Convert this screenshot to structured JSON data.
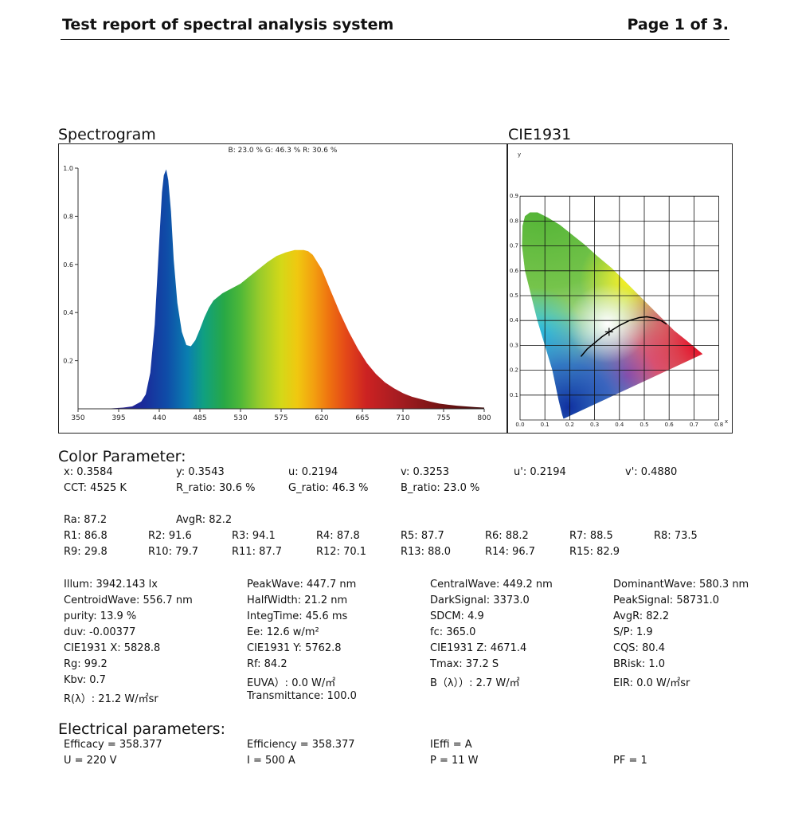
{
  "header": {
    "title": "Test report of spectral analysis system",
    "page": "Page 1 of 3."
  },
  "spectrogram": {
    "title": "Spectrogram",
    "ratio_text": "B: 23.0 %   G: 46.3 %   R: 30.6 %"
  },
  "cie": {
    "title": "CIE1931",
    "ylabel": "y",
    "xlabel": "x",
    "x_ticks": [
      "0.0",
      "0.1",
      "0.2",
      "0.3",
      "0.4",
      "0.5",
      "0.6",
      "0.7",
      "0.8"
    ],
    "y_ticks": [
      "0.1",
      "0.2",
      "0.3",
      "0.4",
      "0.5",
      "0.6",
      "0.7",
      "0.8",
      "0.9"
    ],
    "point": {
      "x": 0.3584,
      "y": 0.3543
    }
  },
  "chart_data": {
    "type": "area",
    "title": "",
    "xlabel": "",
    "ylabel": "",
    "x_ticks": [
      350,
      395,
      440,
      485,
      530,
      575,
      620,
      665,
      710,
      755,
      800
    ],
    "y_ticks": [
      0.2,
      0.4,
      0.6,
      0.8,
      1.0
    ],
    "xlim": [
      350,
      800
    ],
    "ylim": [
      0,
      1.0
    ],
    "grid": false,
    "x": [
      350,
      380,
      400,
      410,
      420,
      425,
      430,
      435,
      440,
      443,
      445,
      447.7,
      450,
      453,
      456,
      460,
      465,
      470,
      475,
      480,
      485,
      490,
      495,
      500,
      510,
      520,
      530,
      540,
      550,
      560,
      570,
      580,
      590,
      600,
      605,
      610,
      620,
      630,
      640,
      650,
      660,
      670,
      680,
      690,
      700,
      710,
      720,
      730,
      740,
      750,
      760,
      770,
      780,
      790,
      800
    ],
    "values": [
      0.0,
      0.0,
      0.005,
      0.01,
      0.03,
      0.06,
      0.15,
      0.35,
      0.7,
      0.9,
      0.97,
      0.995,
      0.95,
      0.82,
      0.62,
      0.44,
      0.32,
      0.265,
      0.26,
      0.285,
      0.33,
      0.38,
      0.42,
      0.45,
      0.48,
      0.5,
      0.52,
      0.55,
      0.58,
      0.61,
      0.635,
      0.65,
      0.66,
      0.66,
      0.655,
      0.64,
      0.58,
      0.49,
      0.4,
      0.32,
      0.25,
      0.19,
      0.145,
      0.11,
      0.085,
      0.065,
      0.05,
      0.04,
      0.03,
      0.022,
      0.017,
      0.013,
      0.01,
      0.007,
      0.005
    ]
  },
  "color_parameter": {
    "title": "Color Parameter:",
    "rows": [
      [
        "x: 0.3584",
        "y: 0.3543",
        "u: 0.2194",
        "v: 0.3253",
        "u': 0.2194",
        "v': 0.4880"
      ],
      [
        "CCT: 4525 K",
        "R_ratio: 30.6 %",
        "G_ratio: 46.3 %",
        "B_ratio: 23.0 %"
      ],
      [
        "Ra: 87.2",
        "AvgR: 82.2"
      ],
      [
        "R1: 86.8",
        "R2: 91.6",
        "R3: 94.1",
        "R4: 87.8",
        "R5: 87.7",
        "R6: 88.2",
        "R7: 88.5",
        "R8: 73.5"
      ],
      [
        "R9: 29.8",
        "R10: 79.7",
        "R11: 87.7",
        "R12: 70.1",
        "R13: 88.0",
        "R14: 96.7",
        "R15: 82.9"
      ]
    ]
  },
  "measurements": [
    [
      "Illum: 3942.143 lx",
      "PeakWave: 447.7 nm",
      "CentralWave: 449.2 nm",
      "DominantWave: 580.3 nm"
    ],
    [
      "CentroidWave: 556.7 nm",
      "HalfWidth: 21.2 nm",
      "DarkSignal: 3373.0",
      "PeakSignal: 58731.0"
    ],
    [
      "purity: 13.9 %",
      "IntegTime: 45.6 ms",
      "SDCM: 4.9",
      "AvgR: 82.2"
    ],
    [
      "duv: -0.00377",
      "Ee: 12.6 w/m²",
      "fc: 365.0",
      "S/P: 1.9"
    ],
    [
      "CIE1931 X: 5828.8",
      "CIE1931 Y: 5762.8",
      "CIE1931 Z: 4671.4",
      "CQS: 80.4"
    ],
    [
      "Rg: 99.2",
      "Rf: 84.2",
      "Tmax: 37.2 S",
      "BRisk: 1.0"
    ],
    [
      "Kbv: 0.7",
      "EUVA）: 0.0 W/㎡",
      "B（λ））: 2.7 W/㎡",
      "EIR: 0.0 W/㎡sr"
    ],
    [
      "R(λ）: 21.2 W/㎡sr",
      "Transmittance: 100.0"
    ]
  ],
  "electrical": {
    "title": "Electrical parameters:",
    "rows": [
      [
        "Efficacy = 358.377",
        "Efficiency = 358.377",
        "IEffi = A"
      ],
      [
        "U = 220 V",
        "I = 500 A",
        "P = 11 W",
        "PF = 1"
      ]
    ]
  }
}
